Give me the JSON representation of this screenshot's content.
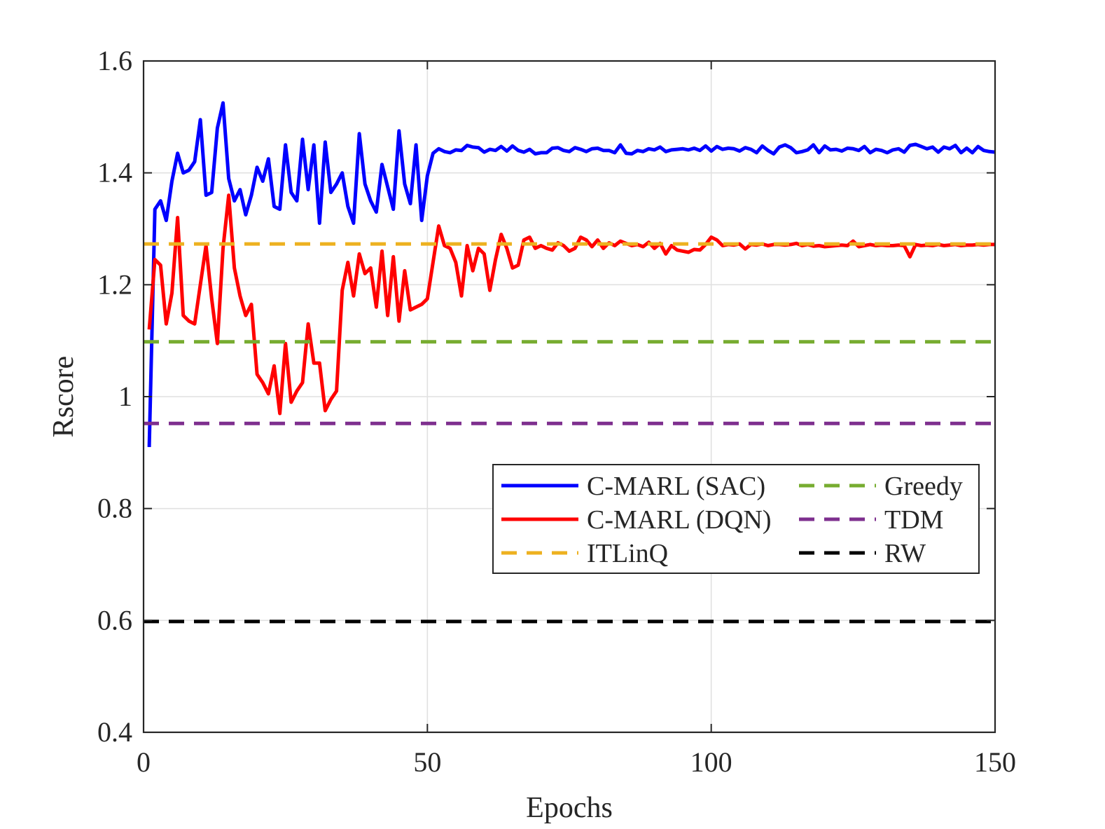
{
  "chart_data": {
    "type": "line",
    "title": "",
    "xlabel": "Epochs",
    "ylabel": "Rscore",
    "xlim": [
      0,
      150
    ],
    "ylim": [
      0.4,
      1.6
    ],
    "xticks": [
      0,
      50,
      100,
      150
    ],
    "xtick_labels": [
      "0",
      "50",
      "100",
      "150"
    ],
    "yticks": [
      0.4,
      0.6,
      0.8,
      1.0,
      1.2,
      1.4,
      1.6
    ],
    "ytick_labels": [
      "0.4",
      "0.6",
      "0.8",
      "1",
      "1.2",
      "1.4",
      "1.6"
    ],
    "grid": true,
    "legend_position": "center-right",
    "legend_columns": 2,
    "series": [
      {
        "name": "C-MARL (SAC)",
        "style": "solid",
        "color": "#0000ff",
        "x": [
          1,
          2,
          3,
          4,
          5,
          6,
          7,
          8,
          9,
          10,
          11,
          12,
          13,
          14,
          15,
          16,
          17,
          18,
          19,
          20,
          21,
          22,
          23,
          24,
          25,
          26,
          27,
          28,
          29,
          30,
          31,
          32,
          33,
          34,
          35,
          36,
          37,
          38,
          39,
          40,
          41,
          42,
          43,
          44,
          45,
          46,
          47,
          48,
          49,
          50,
          51,
          52,
          53,
          54,
          55,
          56,
          57,
          58,
          59,
          60,
          61,
          62,
          63,
          64,
          65,
          66,
          67,
          68,
          69,
          70,
          71,
          72,
          73,
          74,
          75,
          76,
          77,
          78,
          79,
          80,
          81,
          82,
          83,
          84,
          85,
          86,
          87,
          88,
          89,
          90,
          91,
          92,
          93,
          94,
          95,
          96,
          97,
          98,
          99,
          100,
          101,
          102,
          103,
          104,
          105,
          106,
          107,
          108,
          109,
          110,
          111,
          112,
          113,
          114,
          115,
          116,
          117,
          118,
          119,
          120,
          121,
          122,
          123,
          124,
          125,
          126,
          127,
          128,
          129,
          130,
          131,
          132,
          133,
          134,
          135,
          136,
          137,
          138,
          139,
          140,
          141,
          142,
          143,
          144,
          145,
          146,
          147,
          148,
          149,
          150
        ],
        "values": [
          0.91,
          1.335,
          1.35,
          1.315,
          1.385,
          1.435,
          1.4,
          1.405,
          1.42,
          1.495,
          1.36,
          1.365,
          1.48,
          1.525,
          1.39,
          1.35,
          1.37,
          1.325,
          1.36,
          1.41,
          1.385,
          1.425,
          1.34,
          1.335,
          1.45,
          1.365,
          1.35,
          1.46,
          1.37,
          1.45,
          1.31,
          1.455,
          1.365,
          1.38,
          1.4,
          1.34,
          1.31,
          1.47,
          1.38,
          1.35,
          1.33,
          1.415,
          1.375,
          1.335,
          1.475,
          1.38,
          1.345,
          1.45,
          1.315,
          1.395,
          1.435,
          1.443,
          1.438,
          1.436,
          1.441,
          1.44,
          1.449,
          1.446,
          1.445,
          1.437,
          1.442,
          1.44,
          1.447,
          1.439,
          1.448,
          1.44,
          1.437,
          1.442,
          1.434,
          1.436,
          1.436,
          1.444,
          1.445,
          1.44,
          1.438,
          1.445,
          1.442,
          1.438,
          1.443,
          1.444,
          1.44,
          1.44,
          1.436,
          1.45,
          1.435,
          1.434,
          1.44,
          1.438,
          1.443,
          1.441,
          1.446,
          1.438,
          1.441,
          1.442,
          1.443,
          1.441,
          1.444,
          1.44,
          1.448,
          1.439,
          1.447,
          1.442,
          1.444,
          1.443,
          1.439,
          1.445,
          1.442,
          1.436,
          1.448,
          1.44,
          1.434,
          1.446,
          1.45,
          1.445,
          1.436,
          1.438,
          1.441,
          1.45,
          1.436,
          1.448,
          1.441,
          1.442,
          1.439,
          1.444,
          1.443,
          1.44,
          1.447,
          1.436,
          1.442,
          1.44,
          1.436,
          1.441,
          1.443,
          1.437,
          1.449,
          1.451,
          1.447,
          1.443,
          1.446,
          1.437,
          1.446,
          1.443,
          1.449,
          1.436,
          1.444,
          1.436,
          1.447,
          1.44,
          1.438,
          1.437
        ]
      },
      {
        "name": "C-MARL (DQN)",
        "style": "solid",
        "color": "#ff0000",
        "x": [
          1,
          2,
          3,
          4,
          5,
          6,
          7,
          8,
          9,
          10,
          11,
          12,
          13,
          14,
          15,
          16,
          17,
          18,
          19,
          20,
          21,
          22,
          23,
          24,
          25,
          26,
          27,
          28,
          29,
          30,
          31,
          32,
          33,
          34,
          35,
          36,
          37,
          38,
          39,
          40,
          41,
          42,
          43,
          44,
          45,
          46,
          47,
          48,
          49,
          50,
          51,
          52,
          53,
          54,
          55,
          56,
          57,
          58,
          59,
          60,
          61,
          62,
          63,
          64,
          65,
          66,
          67,
          68,
          69,
          70,
          71,
          72,
          73,
          74,
          75,
          76,
          77,
          78,
          79,
          80,
          81,
          82,
          83,
          84,
          85,
          86,
          87,
          88,
          89,
          90,
          91,
          92,
          93,
          94,
          95,
          96,
          97,
          98,
          99,
          100,
          101,
          102,
          103,
          104,
          105,
          106,
          107,
          108,
          109,
          110,
          111,
          112,
          113,
          114,
          115,
          116,
          117,
          118,
          119,
          120,
          121,
          122,
          123,
          124,
          125,
          126,
          127,
          128,
          129,
          130,
          131,
          132,
          133,
          134,
          135,
          136,
          137,
          138,
          139,
          140,
          141,
          142,
          143,
          144,
          145,
          146,
          147,
          148,
          149,
          150
        ],
        "values": [
          1.12,
          1.245,
          1.235,
          1.13,
          1.185,
          1.32,
          1.145,
          1.135,
          1.13,
          1.2,
          1.27,
          1.175,
          1.095,
          1.265,
          1.36,
          1.23,
          1.18,
          1.145,
          1.165,
          1.04,
          1.025,
          1.005,
          1.055,
          0.97,
          1.095,
          0.99,
          1.01,
          1.025,
          1.13,
          1.06,
          1.06,
          0.975,
          0.995,
          1.01,
          1.19,
          1.24,
          1.18,
          1.255,
          1.22,
          1.23,
          1.16,
          1.26,
          1.145,
          1.25,
          1.135,
          1.225,
          1.155,
          1.16,
          1.165,
          1.175,
          1.24,
          1.305,
          1.27,
          1.265,
          1.24,
          1.18,
          1.27,
          1.225,
          1.265,
          1.255,
          1.19,
          1.245,
          1.29,
          1.265,
          1.23,
          1.235,
          1.28,
          1.285,
          1.265,
          1.27,
          1.265,
          1.262,
          1.275,
          1.27,
          1.26,
          1.265,
          1.285,
          1.28,
          1.268,
          1.28,
          1.265,
          1.275,
          1.27,
          1.278,
          1.274,
          1.27,
          1.272,
          1.268,
          1.276,
          1.265,
          1.274,
          1.255,
          1.27,
          1.262,
          1.26,
          1.258,
          1.263,
          1.262,
          1.272,
          1.285,
          1.28,
          1.27,
          1.272,
          1.271,
          1.273,
          1.264,
          1.272,
          1.271,
          1.273,
          1.27,
          1.272,
          1.272,
          1.271,
          1.272,
          1.274,
          1.27,
          1.272,
          1.269,
          1.27,
          1.268,
          1.269,
          1.27,
          1.271,
          1.27,
          1.278,
          1.268,
          1.27,
          1.272,
          1.27,
          1.271,
          1.27,
          1.27,
          1.271,
          1.27,
          1.25,
          1.272,
          1.27,
          1.271,
          1.27,
          1.272,
          1.27,
          1.271,
          1.272,
          1.27,
          1.271,
          1.271,
          1.272,
          1.271,
          1.272,
          1.272
        ]
      },
      {
        "name": "ITLinQ",
        "style": "dashed",
        "color": "#edb120",
        "x": [
          0,
          150
        ],
        "values": [
          1.273,
          1.273
        ]
      },
      {
        "name": "Greedy",
        "style": "dashed",
        "color": "#77ac30",
        "x": [
          0,
          150
        ],
        "values": [
          1.098,
          1.098
        ]
      },
      {
        "name": "TDM",
        "style": "dashed",
        "color": "#7e2f8e",
        "x": [
          0,
          150
        ],
        "values": [
          0.952,
          0.952
        ]
      },
      {
        "name": "RW",
        "style": "dashed",
        "color": "#000000",
        "x": [
          0,
          150
        ],
        "values": [
          0.598,
          0.598
        ]
      }
    ],
    "legend_order": [
      "C-MARL (SAC)",
      "C-MARL (DQN)",
      "ITLinQ",
      "Greedy",
      "TDM",
      "RW"
    ]
  }
}
